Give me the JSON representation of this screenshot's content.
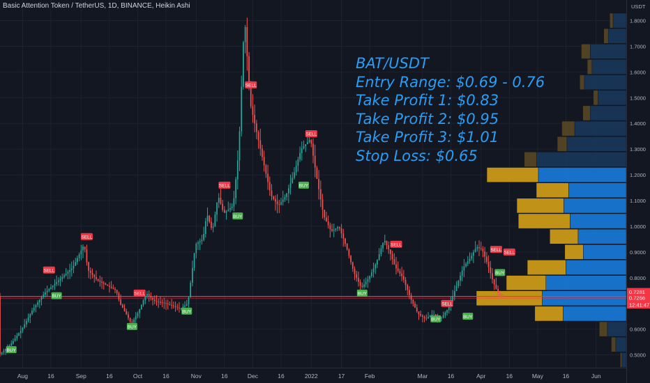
{
  "header": {
    "title": "Basic Attention Token / TetherUS, 1D, BINANCE, Heikin Ashi"
  },
  "annotation": {
    "lines": [
      "BAT/USDT",
      "Entry Range: $0.69 - 0.76",
      "Take Profit 1: $0.83",
      "Take Profit 2: $0.95",
      "Take Profit 3: $1.01",
      "Stop Loss: $0.65"
    ]
  },
  "chart_data": {
    "type": "candlestick",
    "title": "Basic Attention Token / TetherUS, 1D, BINANCE, Heikin Ashi",
    "y_axis_unit": "USDT",
    "ylim": [
      0.45,
      1.88
    ],
    "y_ticks": [
      "0.5000",
      "0.6000",
      "0.7000",
      "0.8000",
      "0.9000",
      "1.0000",
      "1.1000",
      "1.2000",
      "1.3000",
      "1.4000",
      "1.5000",
      "1.6000",
      "1.7000",
      "1.8000"
    ],
    "x_ticks": [
      {
        "label": "Aug",
        "day": 0
      },
      {
        "label": "16",
        "day": 15
      },
      {
        "label": "Sep",
        "day": 31
      },
      {
        "label": "16",
        "day": 46
      },
      {
        "label": "Oct",
        "day": 61
      },
      {
        "label": "16",
        "day": 76
      },
      {
        "label": "Nov",
        "day": 92
      },
      {
        "label": "16",
        "day": 107
      },
      {
        "label": "Dec",
        "day": 122
      },
      {
        "label": "16",
        "day": 137
      },
      {
        "label": "2022",
        "day": 153
      },
      {
        "label": "17",
        "day": 169
      },
      {
        "label": "Feb",
        "day": 184
      },
      {
        "label": "Mar",
        "day": 212
      },
      {
        "label": "16",
        "day": 227
      },
      {
        "label": "Apr",
        "day": 243
      },
      {
        "label": "16",
        "day": 258
      },
      {
        "label": "May",
        "day": 273
      },
      {
        "label": "16",
        "day": 288
      },
      {
        "label": "Jun",
        "day": 304
      }
    ],
    "x_range_days": [
      -12,
      320
    ],
    "price_path": [
      [
        -12,
        0.5
      ],
      [
        -6,
        0.54
      ],
      [
        0,
        0.6
      ],
      [
        6,
        0.68
      ],
      [
        12,
        0.74
      ],
      [
        18,
        0.78
      ],
      [
        24,
        0.82
      ],
      [
        27,
        0.84
      ],
      [
        31,
        0.9
      ],
      [
        33,
        0.93
      ],
      [
        35,
        0.83
      ],
      [
        40,
        0.79
      ],
      [
        45,
        0.77
      ],
      [
        50,
        0.75
      ],
      [
        52,
        0.7
      ],
      [
        56,
        0.65
      ],
      [
        58,
        0.62
      ],
      [
        62,
        0.67
      ],
      [
        66,
        0.74
      ],
      [
        70,
        0.71
      ],
      [
        76,
        0.7
      ],
      [
        80,
        0.69
      ],
      [
        84,
        0.68
      ],
      [
        88,
        0.7
      ],
      [
        92,
        0.93
      ],
      [
        96,
        0.95
      ],
      [
        98,
        1.05
      ],
      [
        101,
        0.98
      ],
      [
        104,
        1.12
      ],
      [
        107,
        1.05
      ],
      [
        112,
        1.08
      ],
      [
        115,
        1.3
      ],
      [
        118,
        1.82
      ],
      [
        121,
        1.48
      ],
      [
        124,
        1.38
      ],
      [
        128,
        1.25
      ],
      [
        132,
        1.12
      ],
      [
        136,
        1.08
      ],
      [
        140,
        1.12
      ],
      [
        144,
        1.2
      ],
      [
        148,
        1.3
      ],
      [
        153,
        1.34
      ],
      [
        156,
        1.2
      ],
      [
        160,
        1.04
      ],
      [
        164,
        0.98
      ],
      [
        168,
        1.0
      ],
      [
        172,
        0.92
      ],
      [
        176,
        0.82
      ],
      [
        180,
        0.76
      ],
      [
        184,
        0.8
      ],
      [
        188,
        0.86
      ],
      [
        192,
        0.95
      ],
      [
        195,
        0.9
      ],
      [
        198,
        0.84
      ],
      [
        202,
        0.8
      ],
      [
        206,
        0.72
      ],
      [
        210,
        0.66
      ],
      [
        214,
        0.64
      ],
      [
        218,
        0.66
      ],
      [
        222,
        0.64
      ],
      [
        226,
        0.68
      ],
      [
        230,
        0.76
      ],
      [
        234,
        0.84
      ],
      [
        238,
        0.88
      ],
      [
        241,
        0.92
      ],
      [
        244,
        0.91
      ],
      [
        247,
        0.85
      ],
      [
        250,
        0.78
      ],
      [
        253,
        0.73
      ],
      [
        255,
        0.728
      ]
    ],
    "signals": [
      {
        "label": "BUY",
        "day": -6,
        "price": 0.52
      },
      {
        "label": "SELL",
        "day": 14,
        "price": 0.83
      },
      {
        "label": "BUY",
        "day": 18,
        "price": 0.73
      },
      {
        "label": "SELL",
        "day": 34,
        "price": 0.96
      },
      {
        "label": "SELL",
        "day": 62,
        "price": 0.74
      },
      {
        "label": "BUY",
        "day": 58,
        "price": 0.61
      },
      {
        "label": "BUY",
        "day": 87,
        "price": 0.67
      },
      {
        "label": "SELL",
        "day": 107,
        "price": 1.16
      },
      {
        "label": "BUY",
        "day": 114,
        "price": 1.04
      },
      {
        "label": "SELL",
        "day": 121,
        "price": 1.55
      },
      {
        "label": "SELL",
        "day": 153,
        "price": 1.36
      },
      {
        "label": "BUY",
        "day": 149,
        "price": 1.16
      },
      {
        "label": "BUY",
        "day": 180,
        "price": 0.74
      },
      {
        "label": "SELL",
        "day": 198,
        "price": 0.93
      },
      {
        "label": "SELL",
        "day": 225,
        "price": 0.7
      },
      {
        "label": "BUY",
        "day": 219,
        "price": 0.64
      },
      {
        "label": "BUY",
        "day": 236,
        "price": 0.65
      },
      {
        "label": "SELL",
        "day": 251,
        "price": 0.91
      },
      {
        "label": "SELL",
        "day": 258,
        "price": 0.9
      },
      {
        "label": "BUY",
        "day": 253,
        "price": 0.82
      }
    ],
    "horizontal_line": {
      "price": 0.727,
      "color": "#f23645"
    },
    "last_price_labels": [
      {
        "value": "0.7281",
        "price": 0.745
      },
      {
        "value": "0.7266",
        "price": 0.722
      },
      {
        "value": "12:41:47",
        "price": 0.695
      }
    ],
    "volume_profile": [
      {
        "low": 0.63,
        "high": 0.69,
        "total": 0.61,
        "up_share": 0.31
      },
      {
        "low": 0.69,
        "high": 0.75,
        "total": 1.0,
        "up_share": 0.44
      },
      {
        "low": 0.75,
        "high": 0.81,
        "total": 0.8,
        "up_share": 0.33
      },
      {
        "low": 0.81,
        "high": 0.87,
        "total": 0.66,
        "up_share": 0.39
      },
      {
        "low": 0.87,
        "high": 0.93,
        "total": 0.41,
        "up_share": 0.3
      },
      {
        "low": 0.93,
        "high": 0.99,
        "total": 0.51,
        "up_share": 0.37
      },
      {
        "low": 0.99,
        "high": 1.05,
        "total": 0.72,
        "up_share": 0.48
      },
      {
        "low": 1.05,
        "high": 1.11,
        "total": 0.73,
        "up_share": 0.43
      },
      {
        "low": 1.11,
        "high": 1.17,
        "total": 0.6,
        "up_share": 0.36
      },
      {
        "low": 1.17,
        "high": 1.23,
        "total": 0.93,
        "up_share": 0.37
      },
      {
        "low": 1.23,
        "high": 1.29,
        "total": 0.68,
        "up_share": 0.12
      },
      {
        "low": 1.29,
        "high": 1.35,
        "total": 0.46,
        "up_share": 0.14
      },
      {
        "low": 1.35,
        "high": 1.41,
        "total": 0.43,
        "up_share": 0.2
      },
      {
        "low": 1.41,
        "high": 1.47,
        "total": 0.29,
        "up_share": 0.17
      },
      {
        "low": 1.47,
        "high": 1.53,
        "total": 0.22,
        "up_share": 0.14
      },
      {
        "low": 1.53,
        "high": 1.59,
        "total": 0.31,
        "up_share": 0.1
      },
      {
        "low": 1.59,
        "high": 1.65,
        "total": 0.26,
        "up_share": 0.12
      },
      {
        "low": 1.65,
        "high": 1.71,
        "total": 0.3,
        "up_share": 0.2
      },
      {
        "low": 1.71,
        "high": 1.77,
        "total": 0.15,
        "up_share": 0.2
      },
      {
        "low": 1.77,
        "high": 1.83,
        "total": 0.11,
        "up_share": 0.2
      },
      {
        "low": 0.57,
        "high": 0.63,
        "total": 0.18,
        "up_share": 0.3
      },
      {
        "low": 0.51,
        "high": 0.57,
        "total": 0.1,
        "up_share": 0.3
      },
      {
        "low": 0.45,
        "high": 0.51,
        "total": 0.04,
        "up_share": 0.3
      }
    ],
    "colors": {
      "up": "#26a69a",
      "down": "#ef5350",
      "buy_label": "#4caf50",
      "sell_label": "#f23645",
      "profile_up_value_area": "#d4a017",
      "profile_down_value_area": "#1976d2",
      "profile_up": "#5c4a25",
      "profile_down": "#1a3a5e",
      "annotation": "#2a9df4"
    }
  }
}
